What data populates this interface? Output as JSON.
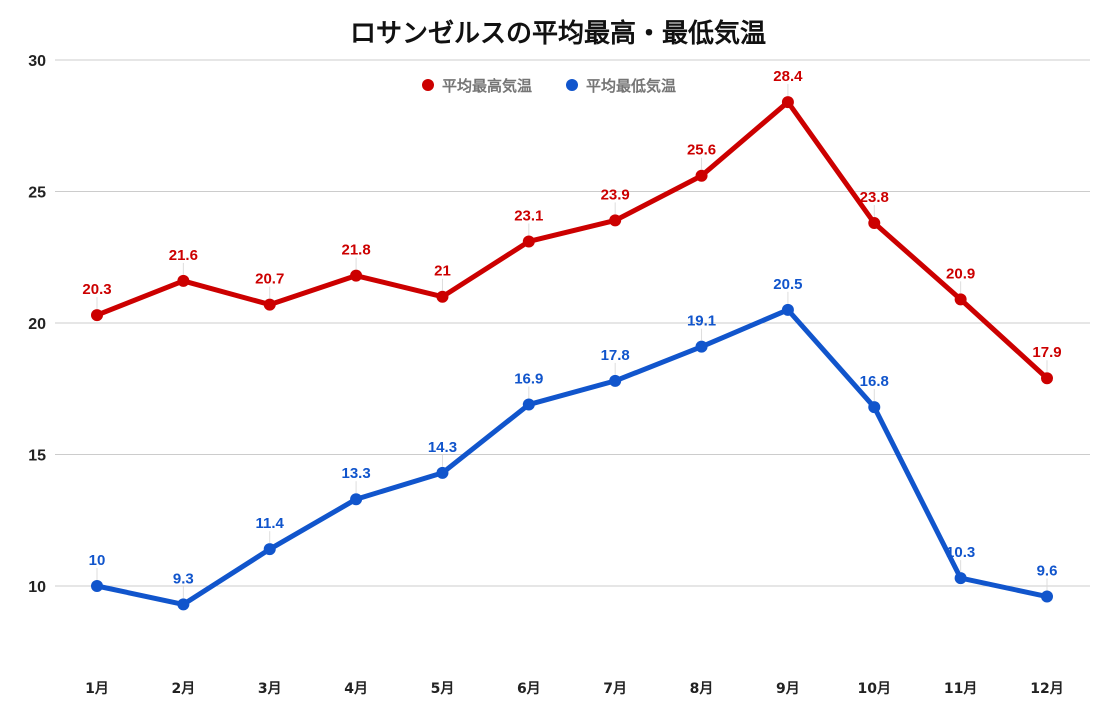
{
  "chart_data": {
    "type": "line",
    "title": "ロサンゼルスの平均最高・最低気温",
    "xlabel": "",
    "ylabel": "",
    "categories": [
      "1月",
      "2月",
      "3月",
      "4月",
      "5月",
      "6月",
      "7月",
      "8月",
      "9月",
      "10月",
      "11月",
      "12月"
    ],
    "ylim": [
      8,
      30
    ],
    "yticks": [
      10,
      15,
      20,
      25,
      30
    ],
    "grid": true,
    "legend_position": "top-center",
    "series": [
      {
        "name": "平均最高気温",
        "color": "#cc0000",
        "values": [
          20.3,
          21.6,
          20.7,
          21.8,
          21,
          23.1,
          23.9,
          25.6,
          28.4,
          23.8,
          20.9,
          17.9
        ],
        "labels": [
          "20.3",
          "21.6",
          "20.7",
          "21.8",
          "21",
          "23.1",
          "23.9",
          "25.6",
          "28.4",
          "23.8",
          "20.9",
          "17.9"
        ]
      },
      {
        "name": "平均最低気温",
        "color": "#1155cc",
        "values": [
          10,
          9.3,
          11.4,
          13.3,
          14.3,
          16.9,
          17.8,
          19.1,
          20.5,
          16.8,
          10.3,
          9.6
        ],
        "labels": [
          "10",
          "9.3",
          "11.4",
          "13.3",
          "14.3",
          "16.9",
          "17.8",
          "19.1",
          "20.5",
          "16.8",
          "10.3",
          "9.6"
        ]
      }
    ]
  }
}
